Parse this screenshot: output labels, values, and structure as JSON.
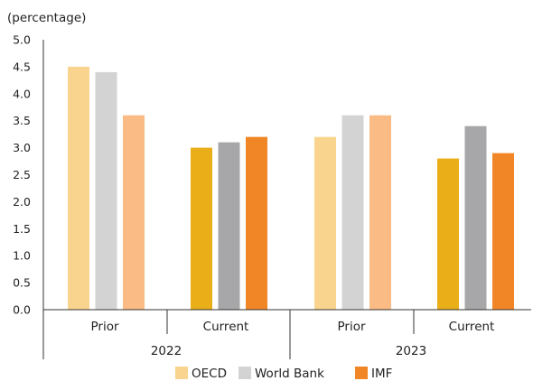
{
  "chart_data": {
    "type": "bar",
    "ylabel": "(percentage)",
    "ylim": [
      0,
      5
    ],
    "yticks": [
      "0.0",
      "0.5",
      "1.0",
      "1.5",
      "2.0",
      "2.5",
      "3.0",
      "3.5",
      "4.0",
      "4.5",
      "5.0"
    ],
    "groups": [
      {
        "year": "2022",
        "subgroups": [
          {
            "label": "Prior",
            "variant": "light",
            "values": {
              "OECD": 4.5,
              "World Bank": 4.4,
              "IMF": 3.6
            }
          },
          {
            "label": "Current",
            "variant": "dark",
            "values": {
              "OECD": 3.0,
              "World Bank": 3.1,
              "IMF": 3.2
            }
          }
        ]
      },
      {
        "year": "2023",
        "subgroups": [
          {
            "label": "Prior",
            "variant": "light",
            "values": {
              "OECD": 3.2,
              "World Bank": 3.6,
              "IMF": 3.6
            }
          },
          {
            "label": "Current",
            "variant": "dark",
            "values": {
              "OECD": 2.8,
              "World Bank": 3.4,
              "IMF": 2.9
            }
          }
        ]
      }
    ],
    "series": [
      {
        "name": "OECD",
        "color_light": "#f9d48f",
        "color_dark": "#e9ae18",
        "legend_color": "#f9d48f"
      },
      {
        "name": "World Bank",
        "color_light": "#d3d3d3",
        "color_dark": "#a7a7a9",
        "legend_color": "#d3d3d3"
      },
      {
        "name": "IMF",
        "color_light": "#fabb85",
        "color_dark": "#f08626",
        "legend_color": "#f08626"
      }
    ],
    "grid": false,
    "legend_position": "bottom"
  }
}
